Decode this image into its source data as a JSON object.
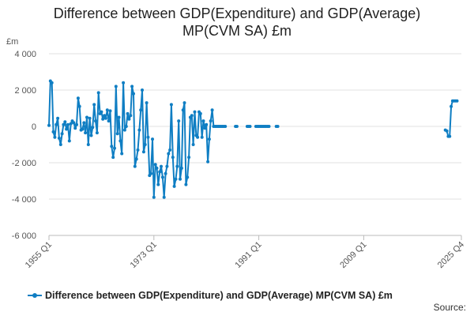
{
  "chart_data": {
    "type": "line",
    "title_lines": [
      "Difference between GDP(Expenditure) and GDP(Average)",
      "MP(CVM SA) £m"
    ],
    "y_unit_label": "£m",
    "ylim": [
      -6000,
      4000
    ],
    "y_ticks": [
      {
        "value": 4000,
        "label": "4 000"
      },
      {
        "value": 2000,
        "label": "2 000"
      },
      {
        "value": 0,
        "label": "0"
      },
      {
        "value": -2000,
        "label": "-2 000"
      },
      {
        "value": -4000,
        "label": "-4 000"
      },
      {
        "value": -6000,
        "label": "-6 000"
      }
    ],
    "x_range": [
      "1955 Q1",
      "2025 Q4"
    ],
    "x_ticks": [
      "1955 Q1",
      "1973 Q1",
      "1991 Q1",
      "2009 Q1",
      "2025 Q4"
    ],
    "grid": true,
    "legend_position": "bottom",
    "color": "#0f7ec3",
    "series": [
      {
        "name": "Difference between GDP(Expenditure) and GDP(Average) MP(CVM SA) £m",
        "points": [
          [
            "1955 Q1",
            50
          ],
          [
            "1955 Q2",
            2500
          ],
          [
            "1955 Q3",
            2400
          ],
          [
            "1955 Q4",
            -300
          ],
          [
            "1956 Q1",
            -600
          ],
          [
            "1956 Q2",
            100
          ],
          [
            "1956 Q3",
            450
          ],
          [
            "1956 Q4",
            -650
          ],
          [
            "1957 Q1",
            -1000
          ],
          [
            "1957 Q2",
            -400
          ],
          [
            "1957 Q3",
            100
          ],
          [
            "1957 Q4",
            250
          ],
          [
            "1958 Q1",
            -150
          ],
          [
            "1958 Q2",
            100
          ],
          [
            "1958 Q3",
            -800
          ],
          [
            "1958 Q4",
            150
          ],
          [
            "1959 Q1",
            300
          ],
          [
            "1959 Q2",
            200
          ],
          [
            "1959 Q3",
            -100
          ],
          [
            "1959 Q4",
            100
          ],
          [
            "1960 Q1",
            1550
          ],
          [
            "1960 Q2",
            1100
          ],
          [
            "1960 Q3",
            -200
          ],
          [
            "1960 Q4",
            -150
          ],
          [
            "1961 Q1",
            200
          ],
          [
            "1961 Q2",
            -350
          ],
          [
            "1961 Q3",
            500
          ],
          [
            "1961 Q4",
            -1000
          ],
          [
            "1962 Q1",
            450
          ],
          [
            "1962 Q2",
            -500
          ],
          [
            "1962 Q3",
            -50
          ],
          [
            "1962 Q4",
            1200
          ],
          [
            "1963 Q1",
            300
          ],
          [
            "1963 Q2",
            -350
          ],
          [
            "1963 Q3",
            1850
          ],
          [
            "1963 Q4",
            700
          ],
          [
            "1964 Q1",
            800
          ],
          [
            "1964 Q2",
            400
          ],
          [
            "1964 Q3",
            600
          ],
          [
            "1964 Q4",
            450
          ],
          [
            "1965 Q1",
            900
          ],
          [
            "1965 Q2",
            300
          ],
          [
            "1965 Q3",
            850
          ],
          [
            "1965 Q4",
            -1100
          ],
          [
            "1966 Q1",
            -1700
          ],
          [
            "1966 Q2",
            -1200
          ],
          [
            "1966 Q3",
            2200
          ],
          [
            "1966 Q4",
            -400
          ],
          [
            "1967 Q1",
            500
          ],
          [
            "1967 Q2",
            -800
          ],
          [
            "1967 Q3",
            -1500
          ],
          [
            "1967 Q4",
            2400
          ],
          [
            "1968 Q1",
            -200
          ],
          [
            "1968 Q2",
            0
          ],
          [
            "1968 Q3",
            700
          ],
          [
            "1968 Q4",
            400
          ],
          [
            "1969 Q1",
            600
          ],
          [
            "1969 Q2",
            2200
          ],
          [
            "1969 Q3",
            1800
          ],
          [
            "1969 Q4",
            -2200
          ],
          [
            "1970 Q1",
            -1800
          ],
          [
            "1970 Q2",
            -1300
          ],
          [
            "1970 Q3",
            -200
          ],
          [
            "1970 Q4",
            900
          ],
          [
            "1971 Q1",
            2000
          ],
          [
            "1971 Q2",
            -1400
          ],
          [
            "1971 Q3",
            -1000
          ],
          [
            "1971 Q4",
            1300
          ],
          [
            "1972 Q1",
            -600
          ],
          [
            "1972 Q2",
            -2700
          ],
          [
            "1972 Q3",
            -2600
          ],
          [
            "1972 Q4",
            -700
          ],
          [
            "1973 Q1",
            -3900
          ],
          [
            "1973 Q2",
            -2100
          ],
          [
            "1973 Q3",
            -2300
          ],
          [
            "1973 Q4",
            -3200
          ],
          [
            "1974 Q1",
            -2500
          ],
          [
            "1974 Q2",
            -2200
          ],
          [
            "1974 Q3",
            -2800
          ],
          [
            "1974 Q4",
            -3900
          ],
          [
            "1975 Q1",
            -2600
          ],
          [
            "1975 Q2",
            -2200
          ],
          [
            "1975 Q3",
            -1500
          ],
          [
            "1975 Q4",
            -1300
          ],
          [
            "1976 Q1",
            1200
          ],
          [
            "1976 Q2",
            -1700
          ],
          [
            "1976 Q3",
            -3300
          ],
          [
            "1976 Q4",
            -2900
          ],
          [
            "1977 Q1",
            -2200
          ],
          [
            "1977 Q2",
            300
          ],
          [
            "1977 Q3",
            -2900
          ],
          [
            "1977 Q4",
            -2300
          ],
          [
            "1978 Q1",
            900
          ],
          [
            "1978 Q2",
            1300
          ],
          [
            "1978 Q3",
            -3200
          ],
          [
            "1978 Q4",
            -2800
          ],
          [
            "1979 Q1",
            -1700
          ],
          [
            "1979 Q2",
            500
          ],
          [
            "1979 Q3",
            600
          ],
          [
            "1979 Q4",
            -1000
          ],
          [
            "1980 Q1",
            800
          ],
          [
            "1980 Q2",
            -500
          ],
          [
            "1980 Q3",
            -600
          ],
          [
            "1980 Q4",
            800
          ],
          [
            "1981 Q1",
            700
          ],
          [
            "1981 Q2",
            -600
          ],
          [
            "1981 Q3",
            300
          ],
          [
            "1981 Q4",
            -100
          ],
          [
            "1982 Q1",
            100
          ],
          [
            "1982 Q2",
            -1950
          ],
          [
            "1982 Q3",
            -700
          ],
          [
            "1982 Q4",
            300
          ],
          [
            "1983 Q1",
            900
          ],
          [
            "1983 Q2",
            0
          ],
          [
            "1983 Q3",
            0
          ],
          [
            "1983 Q4",
            0
          ],
          [
            "1984 Q1",
            0
          ],
          [
            "1984 Q2",
            0
          ],
          [
            "1984 Q3",
            0
          ],
          [
            "1984 Q4",
            0
          ],
          [
            "1985 Q1",
            0
          ],
          [
            "1985 Q2",
            0
          ],
          [
            "1987 Q1",
            0
          ],
          [
            "1987 Q2",
            0
          ],
          [
            "1989 Q1",
            0
          ],
          [
            "1989 Q2",
            0
          ],
          [
            "1989 Q3",
            0
          ],
          [
            "1990 Q3",
            0
          ],
          [
            "1990 Q4",
            0
          ],
          [
            "1991 Q1",
            0
          ],
          [
            "1991 Q2",
            0
          ],
          [
            "1991 Q3",
            0
          ],
          [
            "1991 Q4",
            0
          ],
          [
            "1992 Q1",
            0
          ],
          [
            "1992 Q2",
            0
          ],
          [
            "1992 Q3",
            0
          ],
          [
            "1992 Q4",
            0
          ],
          [
            "1994 Q1",
            0
          ],
          [
            "1994 Q2",
            0
          ],
          [
            "2023 Q1",
            -200
          ],
          [
            "2023 Q2",
            -250
          ],
          [
            "2023 Q3",
            -550
          ],
          [
            "2023 Q4",
            -550
          ],
          [
            "2024 Q1",
            1100
          ],
          [
            "2024 Q2",
            1400
          ],
          [
            "2024 Q3",
            1400
          ],
          [
            "2024 Q4",
            1400
          ],
          [
            "2025 Q1",
            1400
          ]
        ]
      }
    ]
  },
  "source_label": "Source:"
}
